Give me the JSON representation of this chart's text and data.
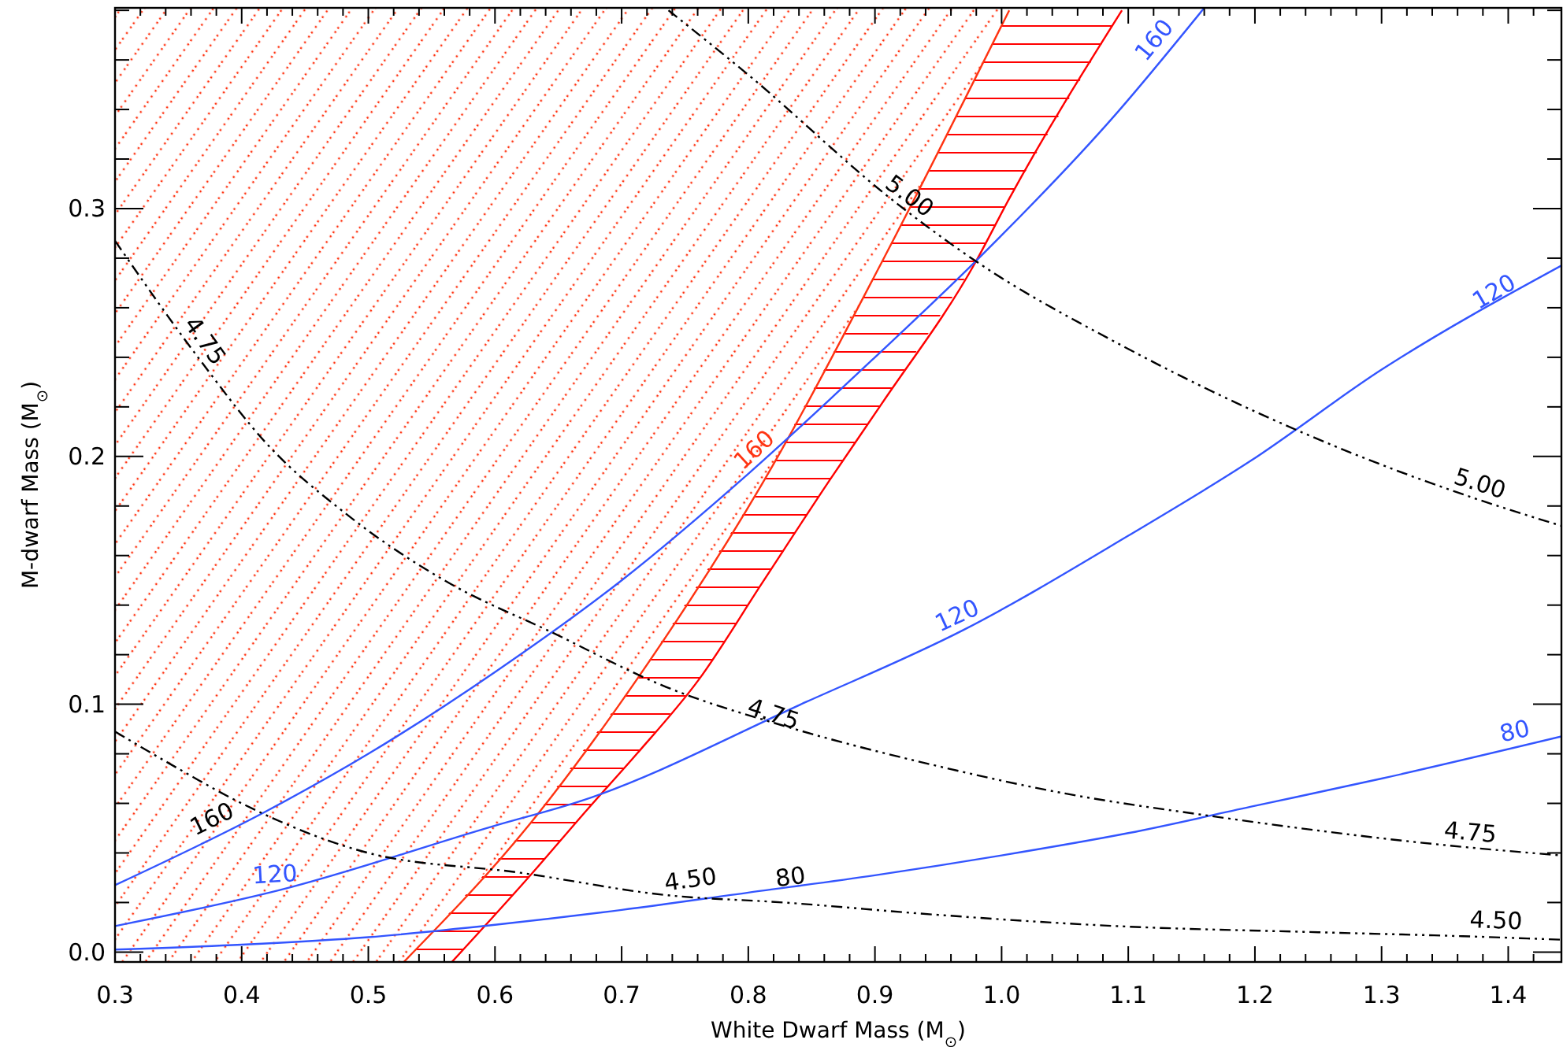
{
  "chart_data": {
    "type": "line",
    "xlabel": "White Dwarf Mass (M$_{⊙}$)",
    "ylabel": "M-dwarf Mass (M$_{⊙}$)",
    "xlim": [
      0.3,
      1.442
    ],
    "ylim": [
      -0.004,
      0.381
    ],
    "xticks": [
      0.3,
      {
        "value": 0.32,
        "label": null
      },
      {
        "value": 0.34,
        "label": null
      },
      {
        "value": 0.36,
        "label": null
      },
      {
        "value": 0.38,
        "label": null
      },
      0.4,
      {
        "value": 0.42,
        "label": null
      },
      {
        "value": 0.44,
        "label": null
      },
      {
        "value": 0.46,
        "label": null
      },
      {
        "value": 0.48,
        "label": null
      },
      0.5,
      {
        "value": 0.52,
        "label": null
      },
      {
        "value": 0.54,
        "label": null
      },
      {
        "value": 0.56,
        "label": null
      },
      {
        "value": 0.58,
        "label": null
      },
      0.6,
      {
        "value": 0.62,
        "label": null
      },
      {
        "value": 0.64,
        "label": null
      },
      {
        "value": 0.66,
        "label": null
      },
      {
        "value": 0.68,
        "label": null
      },
      0.7,
      {
        "value": 0.72,
        "label": null
      },
      {
        "value": 0.74,
        "label": null
      },
      {
        "value": 0.76,
        "label": null
      },
      {
        "value": 0.78,
        "label": null
      },
      0.8,
      {
        "value": 0.82,
        "label": null
      },
      {
        "value": 0.84,
        "label": null
      },
      {
        "value": 0.86,
        "label": null
      },
      {
        "value": 0.88,
        "label": null
      },
      0.9,
      {
        "value": 0.92,
        "label": null
      },
      {
        "value": 0.94,
        "label": null
      },
      {
        "value": 0.96,
        "label": null
      },
      {
        "value": 0.98,
        "label": null
      },
      {
        "value": 1.0,
        "label": "1.0"
      },
      {
        "value": 1.02,
        "label": null
      },
      {
        "value": 1.04,
        "label": null
      },
      {
        "value": 1.06,
        "label": null
      },
      {
        "value": 1.08,
        "label": null
      },
      1.1,
      {
        "value": 1.12,
        "label": null
      },
      {
        "value": 1.14,
        "label": null
      },
      {
        "value": 1.16,
        "label": null
      },
      {
        "value": 1.18,
        "label": null
      },
      1.2,
      {
        "value": 1.22,
        "label": null
      },
      {
        "value": 1.24,
        "label": null
      },
      {
        "value": 1.26,
        "label": null
      },
      {
        "value": 1.28,
        "label": null
      },
      1.3,
      {
        "value": 1.32,
        "label": null
      },
      {
        "value": 1.34,
        "label": null
      },
      {
        "value": 1.36,
        "label": null
      },
      {
        "value": 1.38,
        "label": null
      },
      1.4,
      {
        "value": 1.42,
        "label": null
      }
    ],
    "yticks": [
      {
        "value": 0,
        "label": "0.0"
      },
      {
        "value": 0.02,
        "label": null
      },
      {
        "value": 0.04,
        "label": null
      },
      {
        "value": 0.06,
        "label": null
      },
      {
        "value": 0.08,
        "label": null
      },
      0.1,
      {
        "value": 0.12,
        "label": null
      },
      {
        "value": 0.14,
        "label": null
      },
      {
        "value": 0.16,
        "label": null
      },
      {
        "value": 0.18,
        "label": null
      },
      0.2,
      {
        "value": 0.22,
        "label": null
      },
      {
        "value": 0.24,
        "label": null
      },
      {
        "value": 0.26,
        "label": null
      },
      {
        "value": 0.28,
        "label": null
      },
      0.3,
      {
        "value": 0.32,
        "label": null
      },
      {
        "value": 0.34,
        "label": null
      },
      {
        "value": 0.36,
        "label": null
      },
      {
        "value": 0.38,
        "label": null
      }
    ],
    "grid": false,
    "series": [
      {
        "color": "#ff3311",
        "x": [
          0.3,
          0.528,
          0.628,
          0.712,
          0.811,
          0.905,
          1.006
        ],
        "values": [
          null,
          -0.004,
          0.052,
          0.11,
          0.189,
          0.278,
          0.38
        ],
        "lower": [
          -0.004,
          -0.004,
          0.052,
          0.11,
          0.189,
          0.278,
          0.38
        ],
        "upper": [
          0.381,
          0.381,
          0.381,
          0.381,
          0.381,
          0.381,
          0.381
        ]
      },
      {
        "color": "#ff0000",
        "x": [
          0.528,
          0.566,
          0.628,
          0.672,
          0.712,
          0.761,
          0.811,
          0.865,
          0.905,
          0.979,
          1.006,
          1.095
        ],
        "values": [
          null,
          -0.004,
          0.031,
          0.057,
          0.08,
          0.11,
          0.149,
          0.191,
          0.221,
          0.278,
          0.304,
          0.38
        ],
        "lower": [
          -0.004,
          -0.004,
          0.031,
          0.057,
          0.08,
          0.11,
          0.149,
          0.191,
          0.221,
          0.278,
          0.304,
          0.38
        ],
        "upper": [
          -0.004,
          0.017,
          0.052,
          0.083,
          0.11,
          0.149,
          0.189,
          0.24,
          0.278,
          0.352,
          0.38,
          0.38
        ]
      },
      {
        "color": "#3355ff",
        "line_style": "solid",
        "x": [
          0.3,
          0.42,
          0.5,
          0.6,
          0.7,
          0.8,
          0.9,
          0.98,
          1.09,
          1.16
        ],
        "values": [
          0.027,
          0.057,
          0.08,
          0.113,
          0.15,
          0.193,
          0.24,
          0.279,
          0.338,
          0.381
        ]
      },
      {
        "color": "#3355ff",
        "line_style": "solid",
        "x": [
          0.3,
          0.43,
          0.6,
          0.668,
          0.846,
          0.97,
          1.1,
          1.196,
          1.3,
          1.442
        ],
        "values": [
          0.0105,
          0.025,
          0.051,
          0.061,
          0.101,
          0.13,
          0.168,
          0.198,
          0.235,
          0.277
        ]
      },
      {
        "color": "#3355ff",
        "line_style": "solid",
        "x": [
          0.3,
          0.4,
          0.5,
          0.6,
          0.7,
          0.8,
          0.9,
          1.0,
          1.1,
          1.2,
          1.3,
          1.442
        ],
        "values": [
          0.001,
          0.003,
          0.006,
          0.011,
          0.017,
          0.024,
          0.031,
          0.039,
          0.048,
          0.059,
          0.07,
          0.087
        ]
      },
      {
        "color": "#000000",
        "line_style": "dashed",
        "x": [
          0.3,
          0.35,
          0.4,
          0.5,
          0.62,
          0.735,
          0.828,
          0.95,
          1.09,
          1.25,
          1.364,
          1.442
        ],
        "values": [
          0.089,
          0.074,
          0.06,
          0.04,
          0.032,
          0.023,
          0.02,
          0.015,
          0.0105,
          0.008,
          0.0064,
          0.005
        ]
      },
      {
        "color": "#000000",
        "line_style": "dashed",
        "x": [
          0.3,
          0.367,
          0.42,
          0.482,
          0.56,
          0.645,
          0.735,
          0.83,
          0.95,
          1.05,
          1.164,
          1.353,
          1.442
        ],
        "values": [
          0.287,
          0.239,
          0.205,
          0.177,
          0.15,
          0.129,
          0.107,
          0.091,
          0.075,
          0.064,
          0.055,
          0.043,
          0.039
        ]
      },
      {
        "color": "#000000",
        "line_style": "dashed",
        "x": [
          0.737,
          0.8,
          0.915,
          0.979,
          1.094,
          1.245,
          1.374,
          1.442
        ],
        "values": [
          0.38,
          0.354,
          0.303,
          0.279,
          0.245,
          0.208,
          0.183,
          0.172
        ]
      }
    ],
    "annotations": [
      {
        "text": "160",
        "x": 0.382,
        "y": 0.048
      },
      {
        "text": "160",
        "x": 0.813,
        "y": 0.198
      },
      {
        "text": "160",
        "x": 1.13,
        "y": 0.364
      },
      {
        "text": "120",
        "x": 0.427,
        "y": 0.025
      },
      {
        "text": "120",
        "x": 0.97,
        "y": 0.13
      },
      {
        "text": "120",
        "x": 1.395,
        "y": 0.261
      },
      {
        "text": "80",
        "x": 0.835,
        "y": 0.024
      },
      {
        "text": "80",
        "x": 1.408,
        "y": 0.083
      },
      {
        "text": "4.50",
        "x": 0.756,
        "y": 0.023
      },
      {
        "text": "4.50",
        "x": 1.39,
        "y": 0.0064
      },
      {
        "text": "4.75",
        "x": 0.361,
        "y": 0.243
      },
      {
        "text": "4.75",
        "x": 0.816,
        "y": 0.09
      },
      {
        "text": "4.75",
        "x": 1.369,
        "y": 0.042
      },
      {
        "text": "5.00",
        "x": 0.92,
        "y": 0.3
      },
      {
        "text": "5.00",
        "x": 1.374,
        "y": 0.183
      }
    ]
  }
}
